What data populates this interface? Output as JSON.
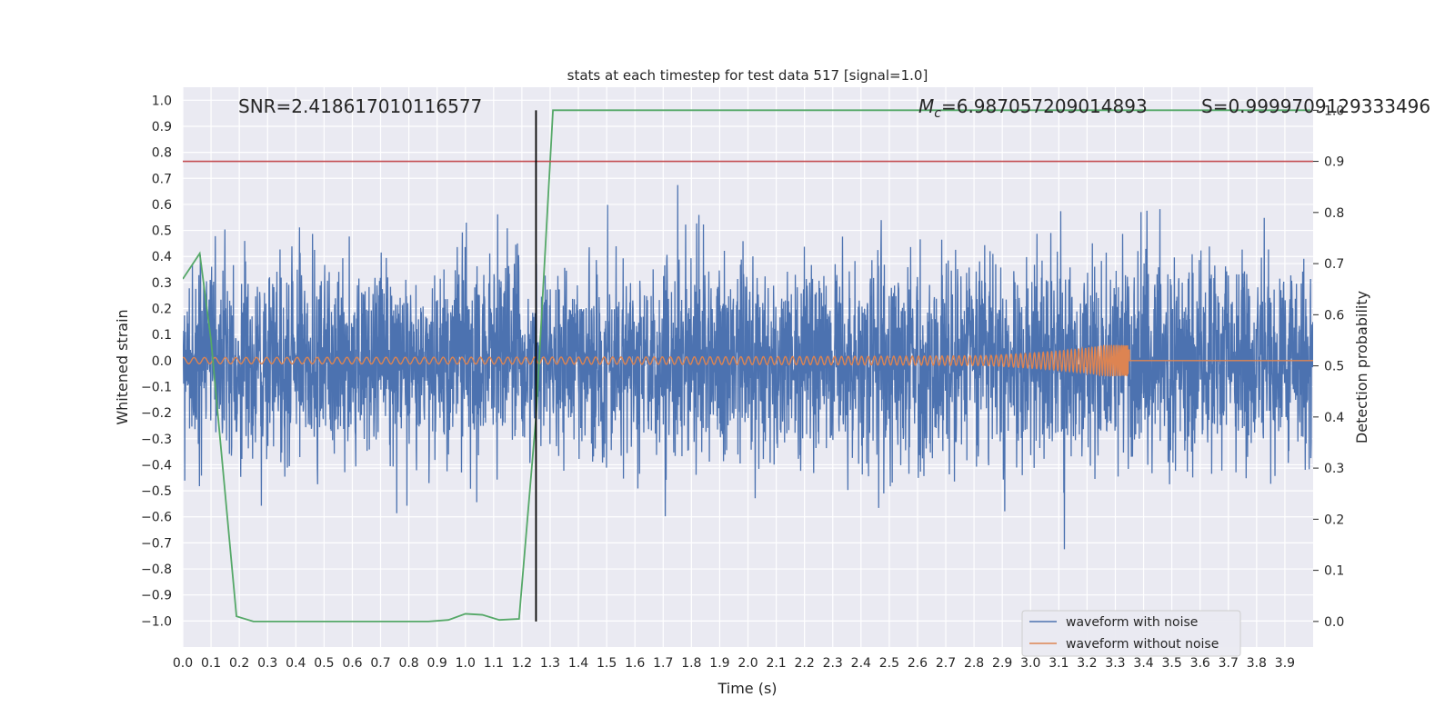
{
  "chart_data": {
    "type": "line",
    "title": "stats at each timestep for test data 517 [signal=1.0]",
    "xlabel": "Time (s)",
    "ylabel": "Whitened strain",
    "ylabel_right": "Detection probability",
    "xlim": [
      0.0,
      4.0
    ],
    "ylim": [
      -1.1,
      1.05
    ],
    "ylim_right": [
      -0.05,
      1.045
    ],
    "x_ticks": [
      "0.0",
      "0.1",
      "0.2",
      "0.3",
      "0.4",
      "0.5",
      "0.6",
      "0.7",
      "0.8",
      "0.9",
      "1.0",
      "1.1",
      "1.2",
      "1.3",
      "1.4",
      "1.5",
      "1.6",
      "1.7",
      "1.8",
      "1.9",
      "2.0",
      "2.1",
      "2.2",
      "2.3",
      "2.4",
      "2.5",
      "2.6",
      "2.7",
      "2.8",
      "2.9",
      "3.0",
      "3.1",
      "3.2",
      "3.3",
      "3.4",
      "3.5",
      "3.6",
      "3.7",
      "3.8",
      "3.9"
    ],
    "y_ticks": [
      "−1.0",
      "−0.9",
      "−0.8",
      "−0.7",
      "−0.6",
      "−0.5",
      "−0.4",
      "−0.3",
      "−0.2",
      "−0.1",
      "0.0",
      "0.1",
      "0.2",
      "0.3",
      "0.4",
      "0.5",
      "0.6",
      "0.7",
      "0.8",
      "0.9",
      "1.0"
    ],
    "y_ticks_right": [
      "0.0",
      "0.1",
      "0.2",
      "0.3",
      "0.4",
      "0.5",
      "0.6",
      "0.7",
      "0.8",
      "0.9",
      "1.0"
    ],
    "annotations": {
      "snr": "SNR=2.418617010116577",
      "mc_symbol": "M",
      "mc_sub": "c",
      "mc_value": "=6.987057209014893",
      "s": "S=0.9999709129333496"
    },
    "threshold_right": 0.9,
    "vline_x": 1.25,
    "series": [
      {
        "name": "waveform with noise",
        "color": "#4c72b0",
        "axis": "left",
        "noise_std": 0.19
      },
      {
        "name": "waveform without noise",
        "color": "#dd8452",
        "axis": "left",
        "chirp_end": 3.35
      },
      {
        "name": "",
        "color": "#55a868",
        "axis": "right",
        "x": [
          0.0,
          0.06,
          0.1,
          0.19,
          0.25,
          0.31,
          0.37,
          0.44,
          0.5,
          0.56,
          0.62,
          0.69,
          0.75,
          0.81,
          0.87,
          0.94,
          1.0,
          1.06,
          1.12,
          1.19,
          1.25,
          1.31,
          1.37,
          1.5,
          2.0,
          2.5,
          3.0,
          3.5,
          3.99
        ],
        "y": [
          0.67,
          0.72,
          0.55,
          0.01,
          0.0,
          0.0,
          0.0,
          0.0,
          0.0,
          0.0,
          0.0,
          0.0,
          0.0,
          0.0,
          0.0,
          0.003,
          0.015,
          0.013,
          0.003,
          0.005,
          0.4,
          1.0,
          1.0,
          1.0,
          1.0,
          1.0,
          1.0,
          1.0,
          1.0
        ]
      }
    ],
    "legend": {
      "placement": "lower-right"
    },
    "grid": true
  }
}
